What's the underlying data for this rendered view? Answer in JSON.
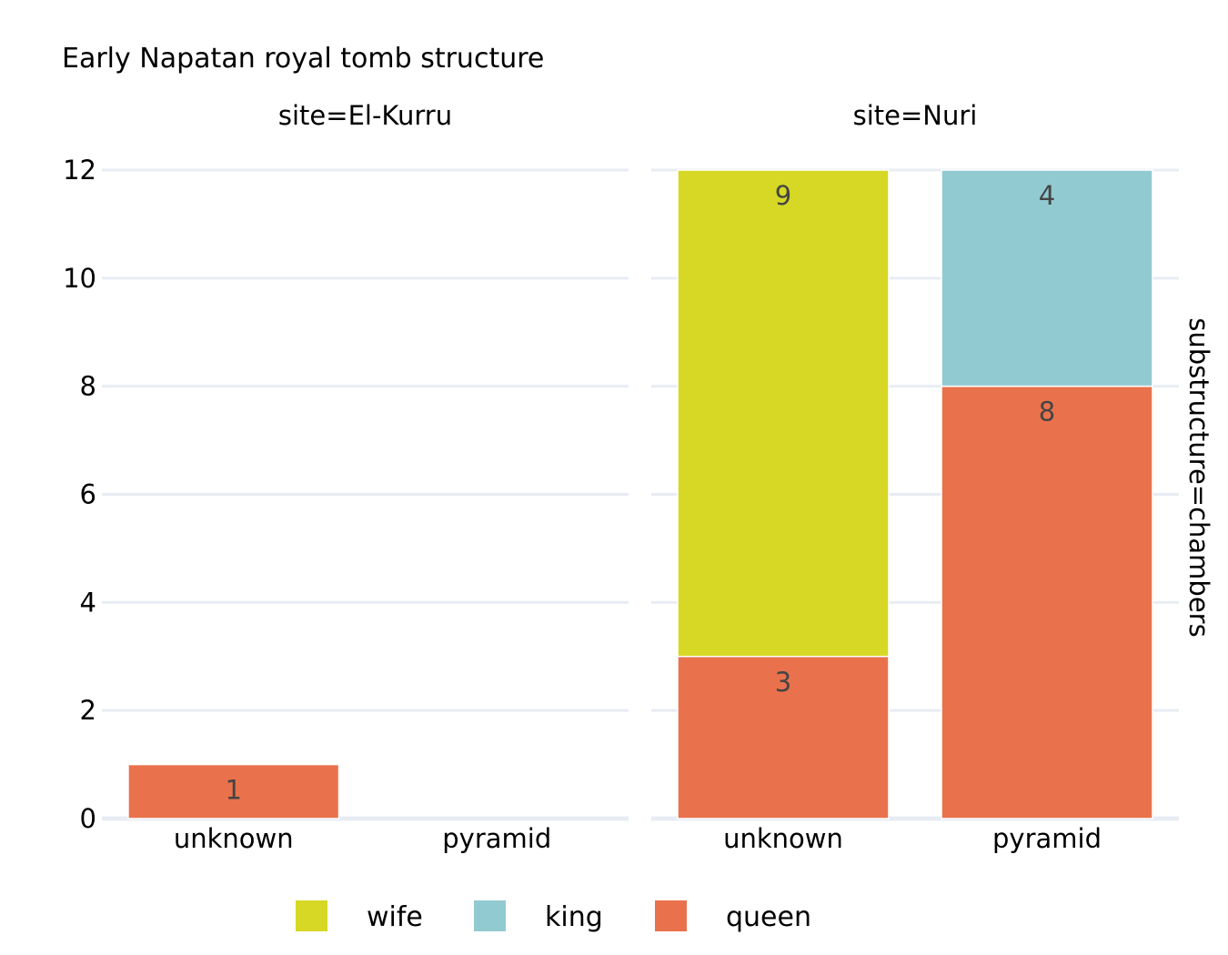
{
  "chart_data": {
    "type": "bar",
    "barmode": "stack",
    "title": "Early Napatan royal tomb structure",
    "row_facet_label": "substructure=chambers",
    "ylim": [
      0,
      12
    ],
    "yticks": [
      0,
      2,
      4,
      6,
      8,
      10,
      12
    ],
    "grid": true,
    "legend_position": "bottom-center",
    "legend": [
      {
        "name": "wife",
        "color": "#d6d825"
      },
      {
        "name": "king",
        "color": "#92cad1"
      },
      {
        "name": "queen",
        "color": "#e9724d"
      }
    ],
    "facets": [
      {
        "label": "site=El-Kurru",
        "categories": [
          "unknown",
          "pyramid"
        ],
        "series": [
          {
            "name": "queen",
            "color": "#e9724d",
            "values": [
              1,
              0
            ]
          },
          {
            "name": "wife",
            "color": "#d6d825",
            "values": [
              0,
              0
            ]
          },
          {
            "name": "king",
            "color": "#92cad1",
            "values": [
              0,
              0
            ]
          }
        ]
      },
      {
        "label": "site=Nuri",
        "categories": [
          "unknown",
          "pyramid"
        ],
        "series": [
          {
            "name": "queen",
            "color": "#e9724d",
            "values": [
              3,
              8
            ]
          },
          {
            "name": "wife",
            "color": "#d6d825",
            "values": [
              9,
              0
            ]
          },
          {
            "name": "king",
            "color": "#92cad1",
            "values": [
              0,
              4
            ]
          }
        ]
      }
    ]
  }
}
